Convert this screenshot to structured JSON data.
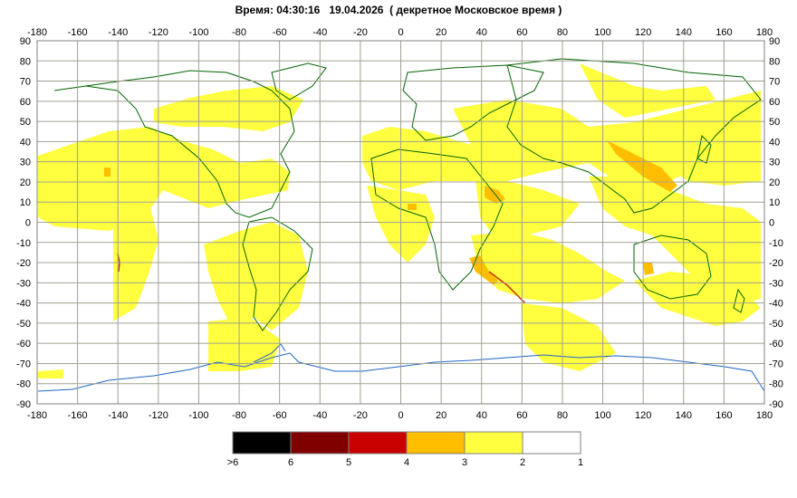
{
  "header": {
    "time_label": "Время:",
    "time_value": "04:30:16",
    "date_value": "19.04.2026",
    "timezone_note": "( декретное Московское время )"
  },
  "map": {
    "lon_ticks": [
      "-180",
      "-160",
      "-140",
      "-120",
      "-100",
      "-80",
      "-60",
      "-40",
      "-20",
      "0",
      "20",
      "40",
      "60",
      "80",
      "100",
      "120",
      "140",
      "160",
      "180"
    ],
    "lat_ticks": [
      "90",
      "80",
      "70",
      "60",
      "50",
      "40",
      "30",
      "20",
      "10",
      "0",
      "-10",
      "-20",
      "-30",
      "-40",
      "-50",
      "-60",
      "-70",
      "-80",
      "-90"
    ],
    "grid_color": "#a0a090",
    "coastline_color": "#006400",
    "antarctic_color": "#1e64c8"
  },
  "legend": {
    "swatches": [
      {
        "color": "#000000"
      },
      {
        "color": "#800000"
      },
      {
        "color": "#c80000"
      },
      {
        "color": "#ffbe00"
      },
      {
        "color": "#ffff40"
      },
      {
        "color": "#ffffff"
      }
    ],
    "labels": [
      ">6",
      "6",
      "5",
      "4",
      "3",
      "2",
      "1"
    ]
  }
}
